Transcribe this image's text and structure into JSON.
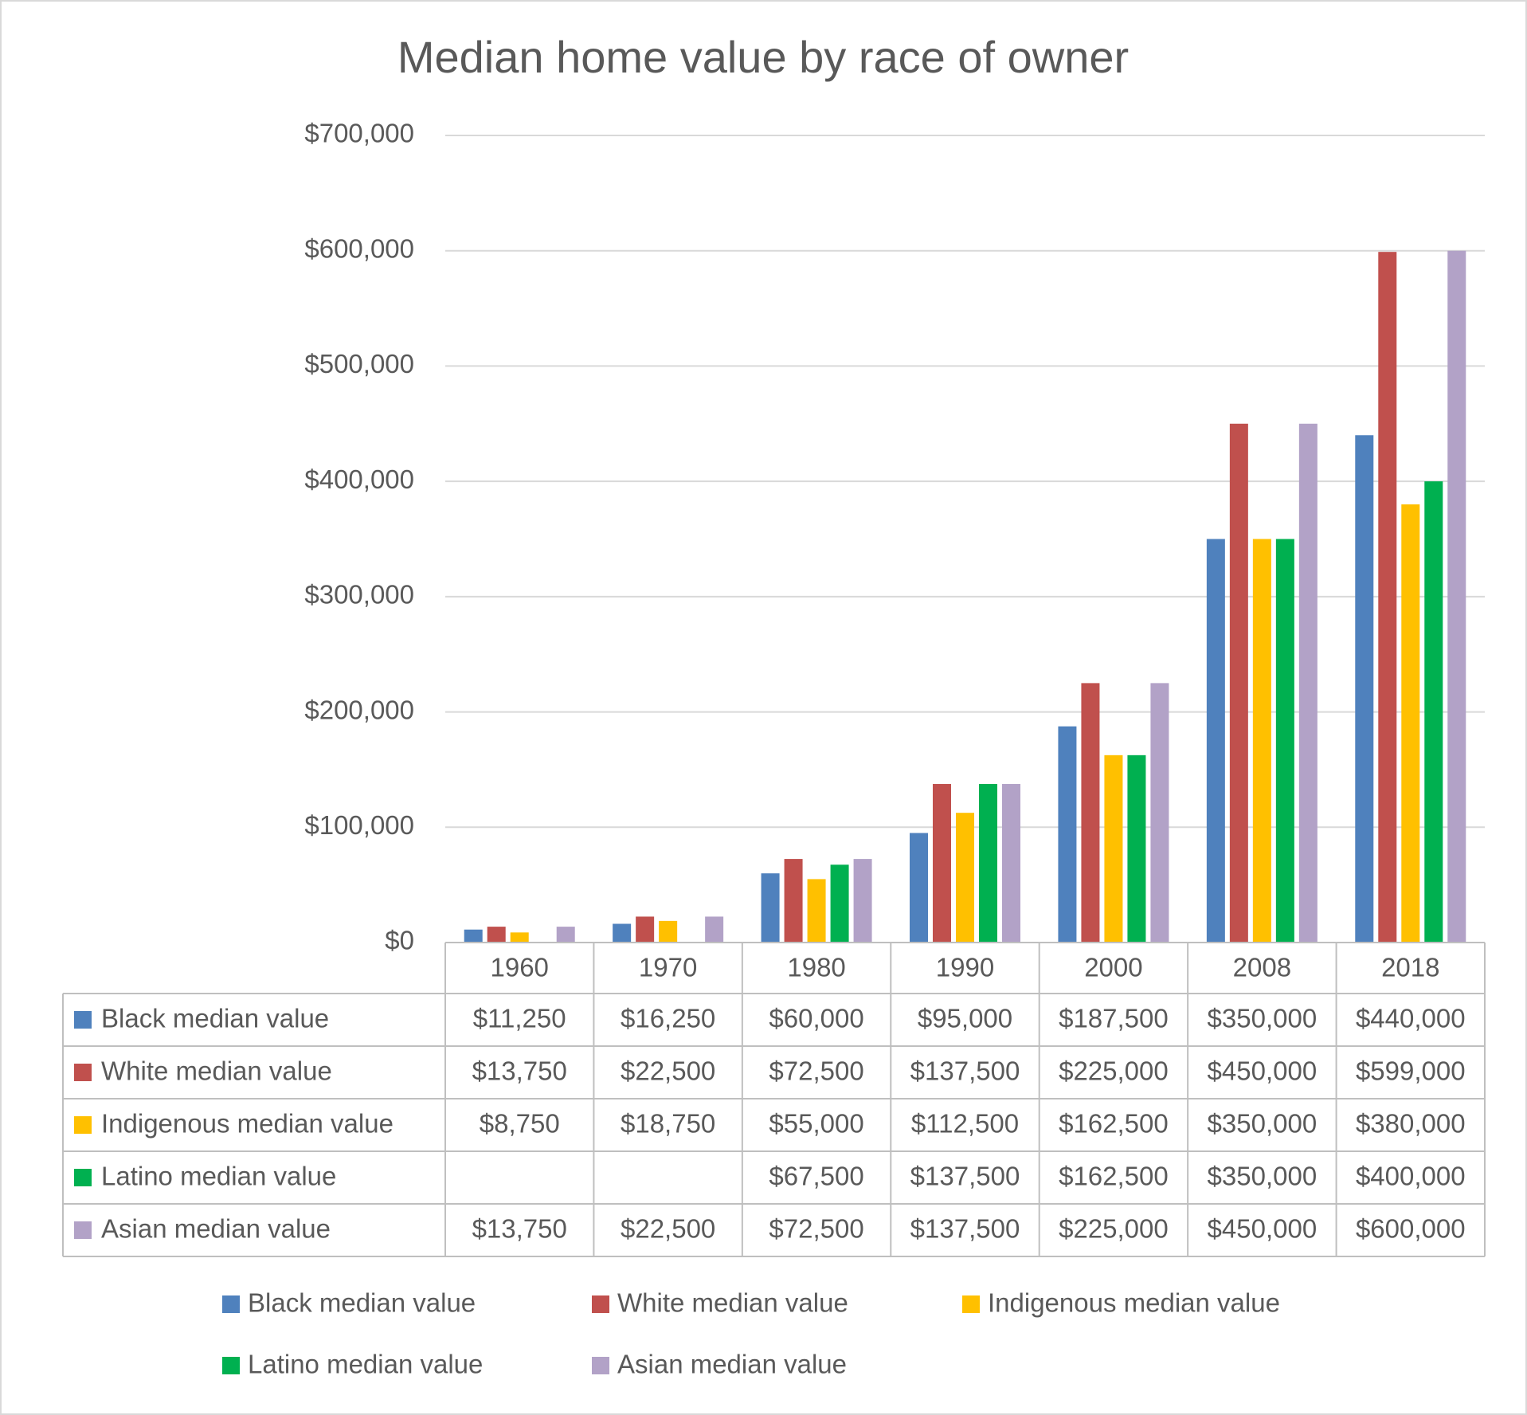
{
  "chart_data": {
    "type": "bar",
    "title": "Median home value by race of owner",
    "categories": [
      "1960",
      "1970",
      "1980",
      "1990",
      "2000",
      "2008",
      "2018"
    ],
    "series": [
      {
        "name": "Black median value",
        "color": "#4f81bd",
        "values": [
          11250,
          16250,
          60000,
          95000,
          187500,
          350000,
          440000
        ],
        "value_labels": [
          "$11,250",
          "$16,250",
          "$60,000",
          "$95,000",
          "$187,500",
          "$350,000",
          "$440,000"
        ]
      },
      {
        "name": "White median value",
        "color": "#c0504d",
        "values": [
          13750,
          22500,
          72500,
          137500,
          225000,
          450000,
          599000
        ],
        "value_labels": [
          "$13,750",
          "$22,500",
          "$72,500",
          "$137,500",
          "$225,000",
          "$450,000",
          "$599,000"
        ]
      },
      {
        "name": "Indigenous median value",
        "color": "#ffc000",
        "values": [
          8750,
          18750,
          55000,
          112500,
          162500,
          350000,
          380000
        ],
        "value_labels": [
          "$8,750",
          "$18,750",
          "$55,000",
          "$112,500",
          "$162,500",
          "$350,000",
          "$380,000"
        ]
      },
      {
        "name": "Latino median value",
        "color": "#00b050",
        "values": [
          null,
          null,
          67500,
          137500,
          162500,
          350000,
          400000
        ],
        "value_labels": [
          null,
          null,
          "$67,500",
          "$137,500",
          "$162,500",
          "$350,000",
          "$400,000"
        ]
      },
      {
        "name": "Asian median value",
        "color": "#b2a2c7",
        "values": [
          13750,
          22500,
          72500,
          137500,
          225000,
          450000,
          600000
        ],
        "value_labels": [
          "$13,750",
          "$22,500",
          "$72,500",
          "$137,500",
          "$225,000",
          "$450,000",
          "$600,000"
        ]
      }
    ],
    "ylim": [
      0,
      700000
    ],
    "yticks": [
      {
        "value": 0,
        "label": "$0"
      },
      {
        "value": 100000,
        "label": "$100,000"
      },
      {
        "value": 200000,
        "label": "$200,000"
      },
      {
        "value": 300000,
        "label": "$300,000"
      },
      {
        "value": 400000,
        "label": "$400,000"
      },
      {
        "value": 500000,
        "label": "$500,000"
      },
      {
        "value": 600000,
        "label": "$600,000"
      },
      {
        "value": 700000,
        "label": "$700,000"
      }
    ],
    "grid": true,
    "data_table": true,
    "legend": "bottom"
  }
}
